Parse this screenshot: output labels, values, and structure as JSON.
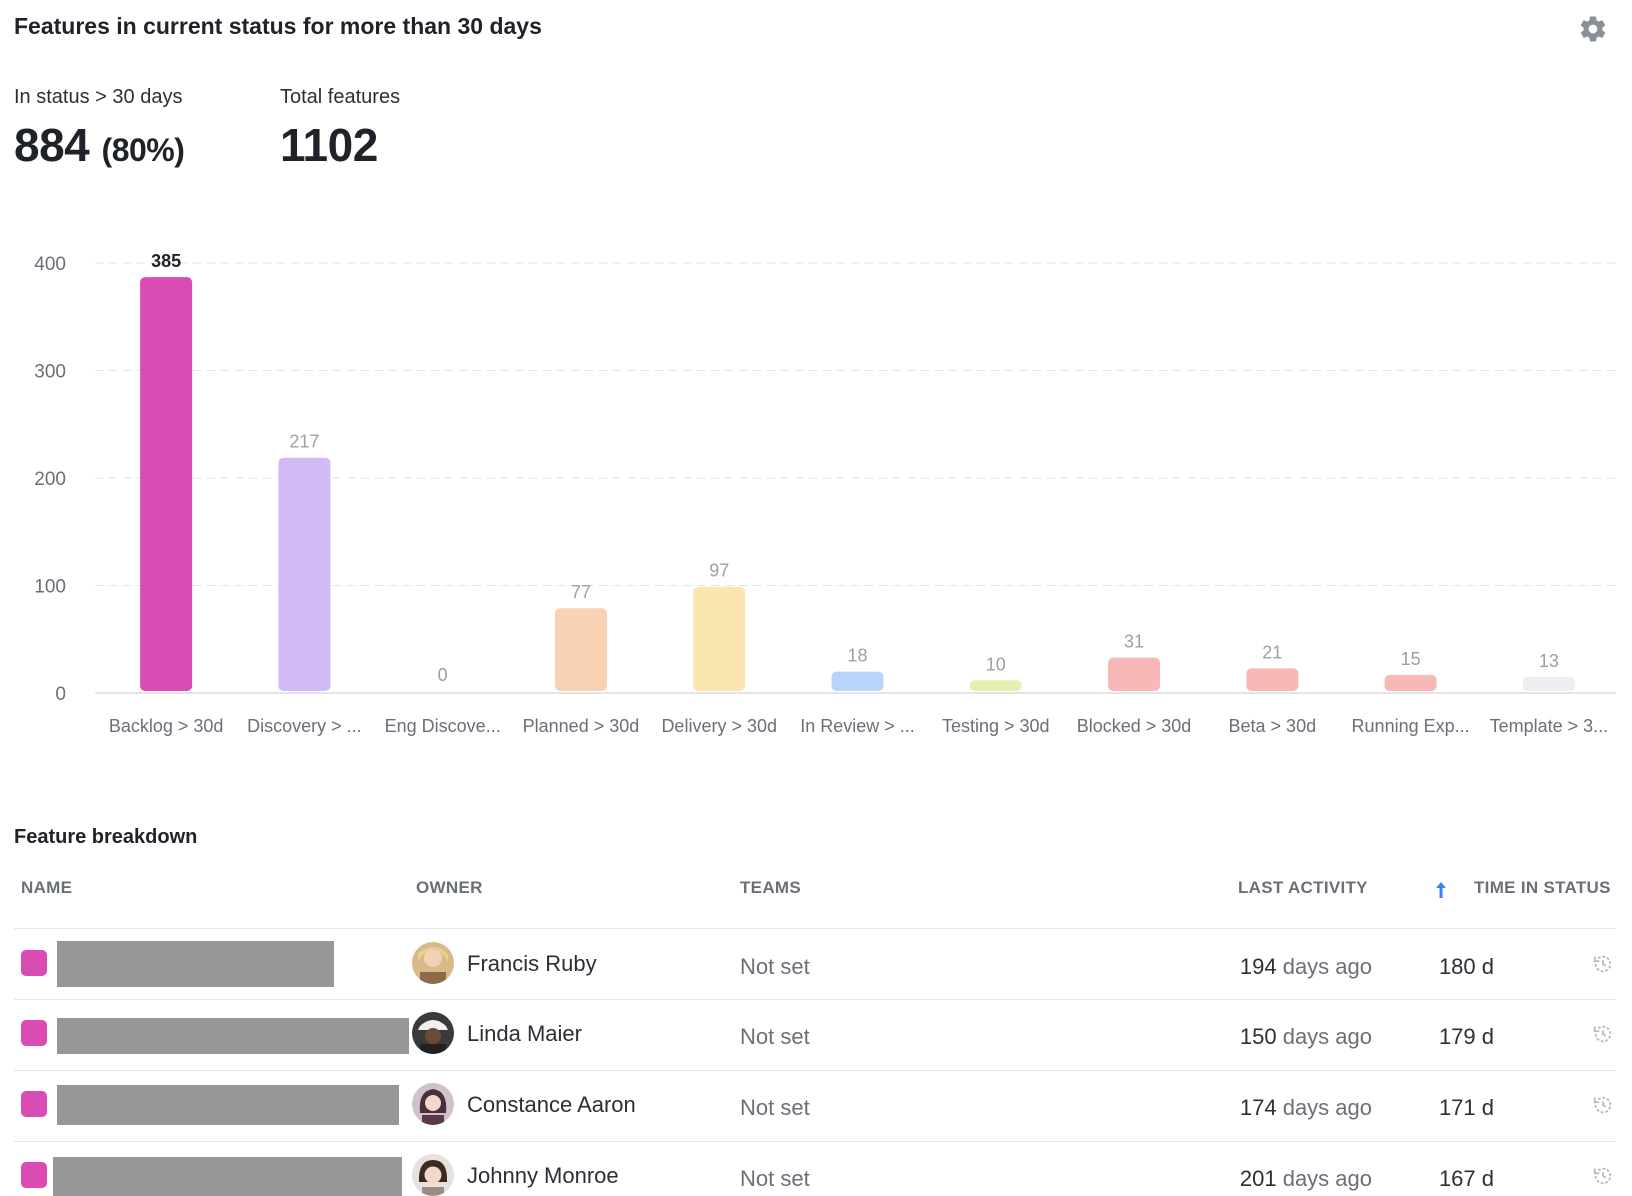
{
  "header": {
    "title": "Features in current status for more than 30 days",
    "settings_icon": "gear-icon"
  },
  "stats": {
    "in_status_label": "In status > 30 days",
    "in_status_value": "884",
    "in_status_pct": "(80%)",
    "total_label": "Total features",
    "total_value": "1102"
  },
  "chart_data": {
    "type": "bar",
    "categories": [
      "Backlog > 30d",
      "Discovery > ...",
      "Eng Discove...",
      "Planned > 30d",
      "Delivery > 30d",
      "In Review > ...",
      "Testing > 30d",
      "Blocked > 30d",
      "Beta > 30d",
      "Running Exp...",
      "Template > 3..."
    ],
    "values": [
      385,
      217,
      0,
      77,
      97,
      18,
      10,
      31,
      21,
      15,
      13
    ],
    "colors": [
      "#d94cb3",
      "#d4b9f7",
      "#c8c8c8",
      "#f8d2b3",
      "#fbe6b1",
      "#b8d4fb",
      "#e3f0b4",
      "#f7b8b8",
      "#f7b8b8",
      "#f7b8b8",
      "#eceef1"
    ],
    "yticks": [
      0,
      100,
      200,
      300,
      400
    ],
    "ylim": [
      0,
      400
    ],
    "grid": true,
    "highlight_index": 0
  },
  "breakdown": {
    "title": "Feature breakdown",
    "columns": {
      "name": "NAME",
      "owner": "OWNER",
      "teams": "TEAMS",
      "last_activity": "LAST ACTIVITY",
      "time_in_status": "TIME IN STATUS"
    },
    "sort_icon": "arrow-up-icon",
    "rows": [
      {
        "owner": "Francis Ruby",
        "teams": "Not set",
        "activity_num": "194",
        "activity_unit": "days ago",
        "time_in_status": "180 d"
      },
      {
        "owner": "Linda Maier",
        "teams": "Not set",
        "activity_num": "150",
        "activity_unit": "days ago",
        "time_in_status": "179 d"
      },
      {
        "owner": "Constance Aaron",
        "teams": "Not set",
        "activity_num": "174",
        "activity_unit": "days ago",
        "time_in_status": "171 d"
      },
      {
        "owner": "Johnny Monroe",
        "teams": "Not set",
        "activity_num": "201",
        "activity_unit": "days ago",
        "time_in_status": "167 d"
      }
    ],
    "row_icon": "history-icon"
  }
}
